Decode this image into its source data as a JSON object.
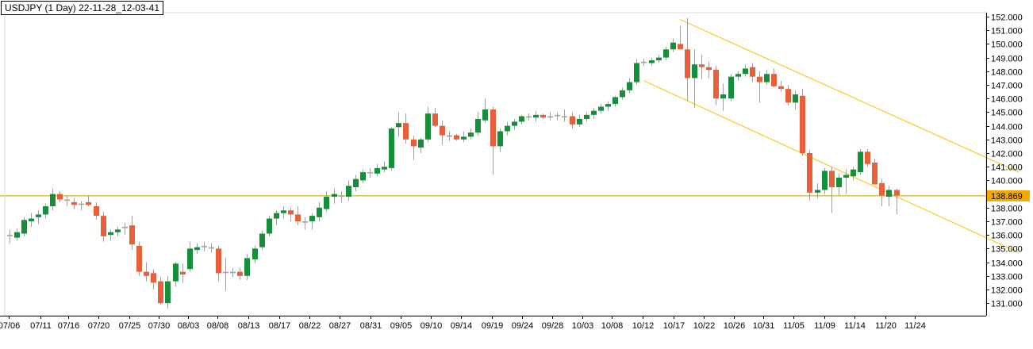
{
  "chart_data": {
    "type": "candlestick",
    "title": "USDJPY (1 Day) 22-11-28_12-03-41",
    "symbol": "USDJPY",
    "timeframe": "1 Day",
    "ylim": [
      130.4,
      152.2
    ],
    "y_ticks": [
      "152.000",
      "151.000",
      "150.000",
      "149.000",
      "148.000",
      "147.000",
      "146.000",
      "145.000",
      "144.000",
      "143.000",
      "142.000",
      "141.000",
      "140.000",
      "139.000",
      "138.000",
      "137.000",
      "136.000",
      "135.000",
      "134.000",
      "133.000",
      "132.000",
      "131.000"
    ],
    "x_tick_labels": [
      "07/06",
      "07/11",
      "07/16",
      "07/20",
      "07/25",
      "07/30",
      "08/03",
      "08/08",
      "08/13",
      "08/17",
      "08/22",
      "08/27",
      "08/31",
      "09/05",
      "09/10",
      "09/14",
      "09/19",
      "09/24",
      "09/28",
      "10/03",
      "10/08",
      "10/12",
      "10/17",
      "10/22",
      "10/26",
      "10/31",
      "11/05",
      "11/09",
      "11/14",
      "11/20",
      "11/24"
    ],
    "current_price": "138.869",
    "candles": [
      {
        "o": 135.9,
        "h": 136.4,
        "l": 135.4,
        "c": 136.0
      },
      {
        "o": 135.8,
        "h": 136.5,
        "l": 135.6,
        "c": 136.2
      },
      {
        "o": 136.1,
        "h": 137.3,
        "l": 135.9,
        "c": 137.1
      },
      {
        "o": 137.0,
        "h": 137.6,
        "l": 136.6,
        "c": 137.2
      },
      {
        "o": 137.3,
        "h": 137.8,
        "l": 136.8,
        "c": 137.5
      },
      {
        "o": 137.5,
        "h": 138.3,
        "l": 137.2,
        "c": 138.1
      },
      {
        "o": 138.1,
        "h": 139.4,
        "l": 137.8,
        "c": 139.0
      },
      {
        "o": 139.0,
        "h": 139.2,
        "l": 138.4,
        "c": 138.6
      },
      {
        "o": 138.6,
        "h": 138.9,
        "l": 138.1,
        "c": 138.5
      },
      {
        "o": 138.4,
        "h": 138.7,
        "l": 137.9,
        "c": 138.2
      },
      {
        "o": 138.2,
        "h": 138.5,
        "l": 137.8,
        "c": 138.3
      },
      {
        "o": 138.4,
        "h": 138.9,
        "l": 138.1,
        "c": 138.2
      },
      {
        "o": 138.1,
        "h": 138.4,
        "l": 137.1,
        "c": 137.4
      },
      {
        "o": 137.4,
        "h": 137.7,
        "l": 135.5,
        "c": 135.9
      },
      {
        "o": 136.0,
        "h": 136.4,
        "l": 135.6,
        "c": 136.2
      },
      {
        "o": 136.2,
        "h": 136.6,
        "l": 135.9,
        "c": 136.4
      },
      {
        "o": 136.5,
        "h": 136.9,
        "l": 136.0,
        "c": 136.6
      },
      {
        "o": 136.7,
        "h": 137.4,
        "l": 134.9,
        "c": 135.3
      },
      {
        "o": 135.2,
        "h": 135.5,
        "l": 133.0,
        "c": 133.3
      },
      {
        "o": 133.3,
        "h": 134.0,
        "l": 132.6,
        "c": 133.0
      },
      {
        "o": 133.2,
        "h": 133.5,
        "l": 132.0,
        "c": 132.5
      },
      {
        "o": 132.6,
        "h": 132.9,
        "l": 130.9,
        "c": 131.0
      },
      {
        "o": 131.0,
        "h": 133.0,
        "l": 130.6,
        "c": 132.6
      },
      {
        "o": 132.6,
        "h": 134.0,
        "l": 132.2,
        "c": 133.9
      },
      {
        "o": 133.3,
        "h": 133.9,
        "l": 132.5,
        "c": 133.1
      },
      {
        "o": 133.5,
        "h": 135.5,
        "l": 133.3,
        "c": 135.0
      },
      {
        "o": 134.9,
        "h": 135.4,
        "l": 134.6,
        "c": 135.1
      },
      {
        "o": 135.1,
        "h": 135.5,
        "l": 134.8,
        "c": 135.2
      },
      {
        "o": 135.1,
        "h": 135.4,
        "l": 134.7,
        "c": 135.0
      },
      {
        "o": 135.0,
        "h": 135.2,
        "l": 132.6,
        "c": 133.2
      },
      {
        "o": 133.2,
        "h": 134.3,
        "l": 131.9,
        "c": 133.3
      },
      {
        "o": 133.3,
        "h": 133.6,
        "l": 132.9,
        "c": 133.2
      },
      {
        "o": 133.3,
        "h": 133.6,
        "l": 132.7,
        "c": 133.0
      },
      {
        "o": 133.0,
        "h": 134.6,
        "l": 132.7,
        "c": 134.3
      },
      {
        "o": 134.2,
        "h": 135.2,
        "l": 133.9,
        "c": 135.0
      },
      {
        "o": 135.1,
        "h": 136.3,
        "l": 134.9,
        "c": 136.1
      },
      {
        "o": 136.1,
        "h": 137.4,
        "l": 135.9,
        "c": 137.2
      },
      {
        "o": 137.2,
        "h": 137.8,
        "l": 136.7,
        "c": 137.6
      },
      {
        "o": 137.6,
        "h": 138.1,
        "l": 137.2,
        "c": 137.8
      },
      {
        "o": 137.8,
        "h": 138.0,
        "l": 137.0,
        "c": 137.5
      },
      {
        "o": 137.5,
        "h": 138.1,
        "l": 136.7,
        "c": 137.0
      },
      {
        "o": 136.9,
        "h": 137.3,
        "l": 136.4,
        "c": 137.0
      },
      {
        "o": 137.0,
        "h": 137.6,
        "l": 136.4,
        "c": 137.4
      },
      {
        "o": 137.3,
        "h": 138.4,
        "l": 137.0,
        "c": 138.0
      },
      {
        "o": 137.9,
        "h": 139.2,
        "l": 137.7,
        "c": 138.8
      },
      {
        "o": 138.8,
        "h": 139.4,
        "l": 138.3,
        "c": 139.0
      },
      {
        "o": 138.9,
        "h": 139.2,
        "l": 138.4,
        "c": 138.8
      },
      {
        "o": 138.8,
        "h": 140.0,
        "l": 138.5,
        "c": 139.6
      },
      {
        "o": 139.5,
        "h": 140.4,
        "l": 139.2,
        "c": 140.1
      },
      {
        "o": 140.0,
        "h": 140.8,
        "l": 139.8,
        "c": 140.6
      },
      {
        "o": 140.6,
        "h": 140.9,
        "l": 140.2,
        "c": 140.6
      },
      {
        "o": 140.5,
        "h": 141.2,
        "l": 140.3,
        "c": 140.9
      },
      {
        "o": 140.8,
        "h": 141.4,
        "l": 140.6,
        "c": 141.0
      },
      {
        "o": 140.9,
        "h": 143.9,
        "l": 140.7,
        "c": 143.8
      },
      {
        "o": 143.9,
        "h": 145.0,
        "l": 143.2,
        "c": 144.2
      },
      {
        "o": 144.2,
        "h": 144.9,
        "l": 142.7,
        "c": 143.0
      },
      {
        "o": 143.0,
        "h": 143.3,
        "l": 141.5,
        "c": 142.5
      },
      {
        "o": 142.4,
        "h": 143.1,
        "l": 142.0,
        "c": 143.0
      },
      {
        "o": 143.0,
        "h": 145.4,
        "l": 142.8,
        "c": 144.9
      },
      {
        "o": 144.9,
        "h": 145.3,
        "l": 143.9,
        "c": 144.0
      },
      {
        "o": 144.0,
        "h": 144.4,
        "l": 142.6,
        "c": 143.3
      },
      {
        "o": 143.2,
        "h": 143.6,
        "l": 142.9,
        "c": 143.3
      },
      {
        "o": 143.3,
        "h": 143.4,
        "l": 142.9,
        "c": 143.0
      },
      {
        "o": 143.0,
        "h": 143.6,
        "l": 142.8,
        "c": 143.2
      },
      {
        "o": 143.2,
        "h": 143.8,
        "l": 143.0,
        "c": 143.5
      },
      {
        "o": 143.5,
        "h": 145.0,
        "l": 143.3,
        "c": 144.5
      },
      {
        "o": 144.4,
        "h": 146.0,
        "l": 144.2,
        "c": 145.2
      },
      {
        "o": 145.2,
        "h": 145.4,
        "l": 140.4,
        "c": 142.5
      },
      {
        "o": 142.5,
        "h": 143.8,
        "l": 142.1,
        "c": 143.6
      },
      {
        "o": 143.6,
        "h": 144.3,
        "l": 143.3,
        "c": 144.0
      },
      {
        "o": 144.0,
        "h": 144.5,
        "l": 143.7,
        "c": 144.3
      },
      {
        "o": 144.3,
        "h": 144.8,
        "l": 144.1,
        "c": 144.7
      },
      {
        "o": 144.6,
        "h": 144.9,
        "l": 144.4,
        "c": 144.7
      },
      {
        "o": 144.6,
        "h": 145.1,
        "l": 144.3,
        "c": 144.8
      },
      {
        "o": 144.8,
        "h": 144.9,
        "l": 144.5,
        "c": 144.6
      },
      {
        "o": 144.6,
        "h": 145.0,
        "l": 144.4,
        "c": 144.7
      },
      {
        "o": 144.7,
        "h": 145.0,
        "l": 144.4,
        "c": 144.8
      },
      {
        "o": 144.7,
        "h": 145.2,
        "l": 144.3,
        "c": 144.7
      },
      {
        "o": 144.7,
        "h": 145.0,
        "l": 143.8,
        "c": 144.1
      },
      {
        "o": 144.1,
        "h": 144.8,
        "l": 143.9,
        "c": 144.5
      },
      {
        "o": 144.5,
        "h": 145.0,
        "l": 144.3,
        "c": 144.8
      },
      {
        "o": 144.8,
        "h": 145.3,
        "l": 144.5,
        "c": 145.1
      },
      {
        "o": 145.1,
        "h": 145.6,
        "l": 144.9,
        "c": 145.4
      },
      {
        "o": 145.4,
        "h": 145.8,
        "l": 145.1,
        "c": 145.6
      },
      {
        "o": 145.6,
        "h": 146.2,
        "l": 145.4,
        "c": 146.1
      },
      {
        "o": 146.1,
        "h": 146.8,
        "l": 145.9,
        "c": 146.6
      },
      {
        "o": 146.6,
        "h": 147.5,
        "l": 146.4,
        "c": 147.2
      },
      {
        "o": 147.2,
        "h": 148.9,
        "l": 147.0,
        "c": 148.6
      },
      {
        "o": 148.6,
        "h": 148.9,
        "l": 148.4,
        "c": 148.7
      },
      {
        "o": 148.6,
        "h": 149.0,
        "l": 148.4,
        "c": 148.8
      },
      {
        "o": 148.8,
        "h": 149.2,
        "l": 148.6,
        "c": 149.0
      },
      {
        "o": 149.0,
        "h": 149.8,
        "l": 148.8,
        "c": 149.6
      },
      {
        "o": 149.6,
        "h": 150.4,
        "l": 149.4,
        "c": 150.1
      },
      {
        "o": 150.0,
        "h": 151.3,
        "l": 149.8,
        "c": 149.6
      },
      {
        "o": 149.6,
        "h": 151.9,
        "l": 145.8,
        "c": 147.5
      },
      {
        "o": 147.5,
        "h": 149.6,
        "l": 145.3,
        "c": 148.5
      },
      {
        "o": 148.5,
        "h": 149.2,
        "l": 147.4,
        "c": 148.3
      },
      {
        "o": 148.3,
        "h": 148.7,
        "l": 147.5,
        "c": 148.1
      },
      {
        "o": 148.1,
        "h": 148.4,
        "l": 145.5,
        "c": 146.0
      },
      {
        "o": 146.0,
        "h": 147.1,
        "l": 145.1,
        "c": 146.3
      },
      {
        "o": 146.0,
        "h": 147.8,
        "l": 145.8,
        "c": 147.6
      },
      {
        "o": 147.6,
        "h": 148.0,
        "l": 147.3,
        "c": 147.8
      },
      {
        "o": 147.8,
        "h": 148.5,
        "l": 147.6,
        "c": 148.2
      },
      {
        "o": 148.3,
        "h": 148.6,
        "l": 147.2,
        "c": 147.6
      },
      {
        "o": 147.6,
        "h": 148.0,
        "l": 145.7,
        "c": 147.2
      },
      {
        "o": 147.2,
        "h": 148.1,
        "l": 147.0,
        "c": 147.8
      },
      {
        "o": 147.8,
        "h": 148.2,
        "l": 146.8,
        "c": 146.9
      },
      {
        "o": 146.9,
        "h": 147.3,
        "l": 146.5,
        "c": 146.7
      },
      {
        "o": 146.7,
        "h": 147.0,
        "l": 145.5,
        "c": 145.7
      },
      {
        "o": 145.7,
        "h": 146.6,
        "l": 145.2,
        "c": 146.3
      },
      {
        "o": 146.2,
        "h": 146.7,
        "l": 141.8,
        "c": 142.0
      },
      {
        "o": 142.0,
        "h": 142.2,
        "l": 138.5,
        "c": 139.1
      },
      {
        "o": 139.1,
        "h": 139.8,
        "l": 138.7,
        "c": 139.3
      },
      {
        "o": 139.3,
        "h": 140.9,
        "l": 139.0,
        "c": 140.7
      },
      {
        "o": 140.7,
        "h": 141.0,
        "l": 137.6,
        "c": 139.5
      },
      {
        "o": 139.5,
        "h": 140.5,
        "l": 138.9,
        "c": 140.2
      },
      {
        "o": 140.2,
        "h": 140.8,
        "l": 139.0,
        "c": 140.4
      },
      {
        "o": 140.3,
        "h": 141.0,
        "l": 140.0,
        "c": 140.8
      },
      {
        "o": 140.6,
        "h": 142.3,
        "l": 140.4,
        "c": 142.1
      },
      {
        "o": 142.1,
        "h": 142.3,
        "l": 141.0,
        "c": 141.2
      },
      {
        "o": 141.3,
        "h": 141.6,
        "l": 139.8,
        "c": 139.7
      },
      {
        "o": 139.8,
        "h": 140.1,
        "l": 138.1,
        "c": 138.9
      },
      {
        "o": 138.8,
        "h": 139.6,
        "l": 138.1,
        "c": 139.3
      },
      {
        "o": 139.3,
        "h": 139.4,
        "l": 137.5,
        "c": 138.9
      }
    ],
    "trend_lines": [
      {
        "from": [
          93,
          151.8
        ],
        "to": [
          140,
          140.6
        ]
      },
      {
        "from": [
          88,
          147.3
        ],
        "to": [
          140,
          134.7
        ]
      },
      {
        "from": [
          -1,
          138.87
        ],
        "to": [
          150,
          138.87
        ]
      }
    ],
    "colors": {
      "bull": "#168f3b",
      "bear": "#e8603a",
      "doji": "#a6a6a6",
      "wick": "#a0a0a0",
      "trend": "#ffc000",
      "price_line": "#c8a000",
      "price_tag": "#f2a900"
    }
  }
}
